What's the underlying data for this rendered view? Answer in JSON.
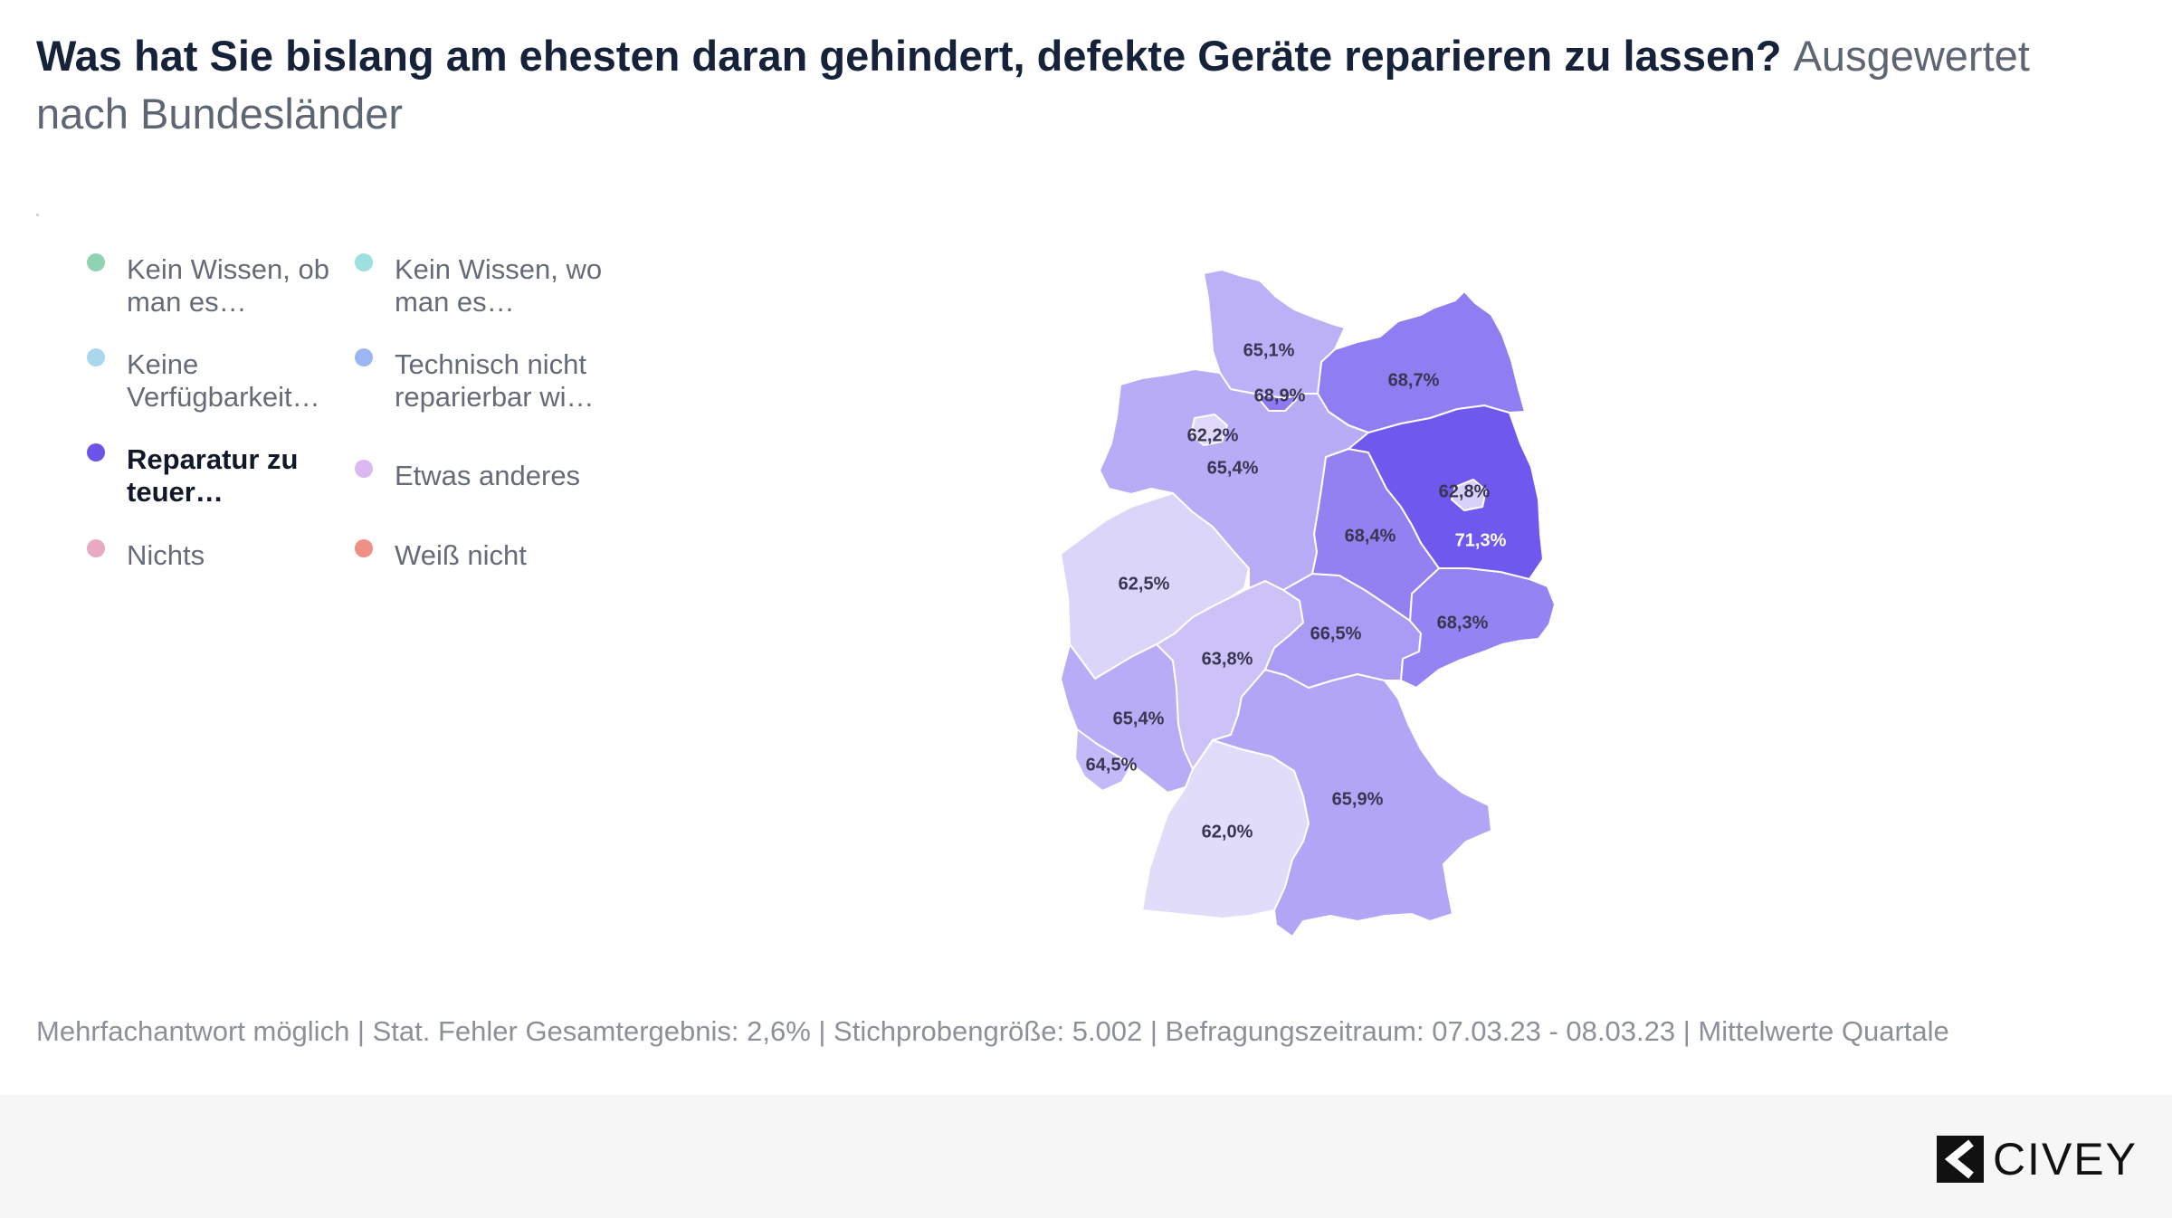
{
  "title": {
    "main": "Was hat Sie bislang am ehesten daran gehindert, defekte Geräte reparieren zu lassen?",
    "sub": "Ausgewertet nach Bundesländer"
  },
  "legend": [
    {
      "label": "Kein Wissen, ob\nman es…",
      "color": "#8fd3b3",
      "active": false
    },
    {
      "label": "Kein Wissen, wo\nman es…",
      "color": "#9ee0e0",
      "active": false
    },
    {
      "label": "Keine\nVerfügbarkeit…",
      "color": "#a9d8ee",
      "active": false
    },
    {
      "label": "Technisch nicht\nreparierbar wi…",
      "color": "#9cb6f4",
      "active": false
    },
    {
      "label": "Reparatur zu\nteuer…",
      "color": "#6a55e8",
      "active": true
    },
    {
      "label": "Etwas anderes",
      "color": "#dcb8f2",
      "active": false
    },
    {
      "label": "Nichts",
      "color": "#e8a9c3",
      "active": false
    },
    {
      "label": "Weiß nicht",
      "color": "#ef8f85",
      "active": false
    }
  ],
  "map": {
    "scale_colors": {
      "low": "#e2dcfb",
      "high": "#6f58ee"
    },
    "regions": [
      {
        "id": "schleswig-holstein",
        "value": 65.1,
        "label": "65,1%"
      },
      {
        "id": "hamburg",
        "value": 68.9,
        "label": "68,9%"
      },
      {
        "id": "mecklenburg-vorpommern",
        "value": 68.7,
        "label": "68,7%"
      },
      {
        "id": "bremen",
        "value": 62.2,
        "label": "62,2%"
      },
      {
        "id": "niedersachsen",
        "value": 65.4,
        "label": "65,4%"
      },
      {
        "id": "berlin",
        "value": 62.8,
        "label": "62,8%"
      },
      {
        "id": "brandenburg",
        "value": 71.3,
        "label": "71,3%"
      },
      {
        "id": "sachsen-anhalt",
        "value": 68.4,
        "label": "68,4%"
      },
      {
        "id": "nordrhein-westfalen",
        "value": 62.5,
        "label": "62,5%"
      },
      {
        "id": "sachsen",
        "value": 68.3,
        "label": "68,3%"
      },
      {
        "id": "thueringen",
        "value": 66.5,
        "label": "66,5%"
      },
      {
        "id": "hessen",
        "value": 63.8,
        "label": "63,8%"
      },
      {
        "id": "rheinland-pfalz",
        "value": 65.4,
        "label": "65,4%"
      },
      {
        "id": "saarland",
        "value": 64.5,
        "label": "64,5%"
      },
      {
        "id": "bayern",
        "value": 65.9,
        "label": "65,9%"
      },
      {
        "id": "baden-wuerttemberg",
        "value": 62.0,
        "label": "62,0%"
      }
    ]
  },
  "footnote": "Mehrfachantwort möglich | Stat. Fehler Gesamtergebnis: 2,6% | Stichprobengröße: 5.002 | Befragungszeitraum: 07.03.23 - 08.03.23 | Mittelwerte Quartale",
  "logo": {
    "text": "CIVEY",
    "icon": "civey-logo-icon"
  }
}
